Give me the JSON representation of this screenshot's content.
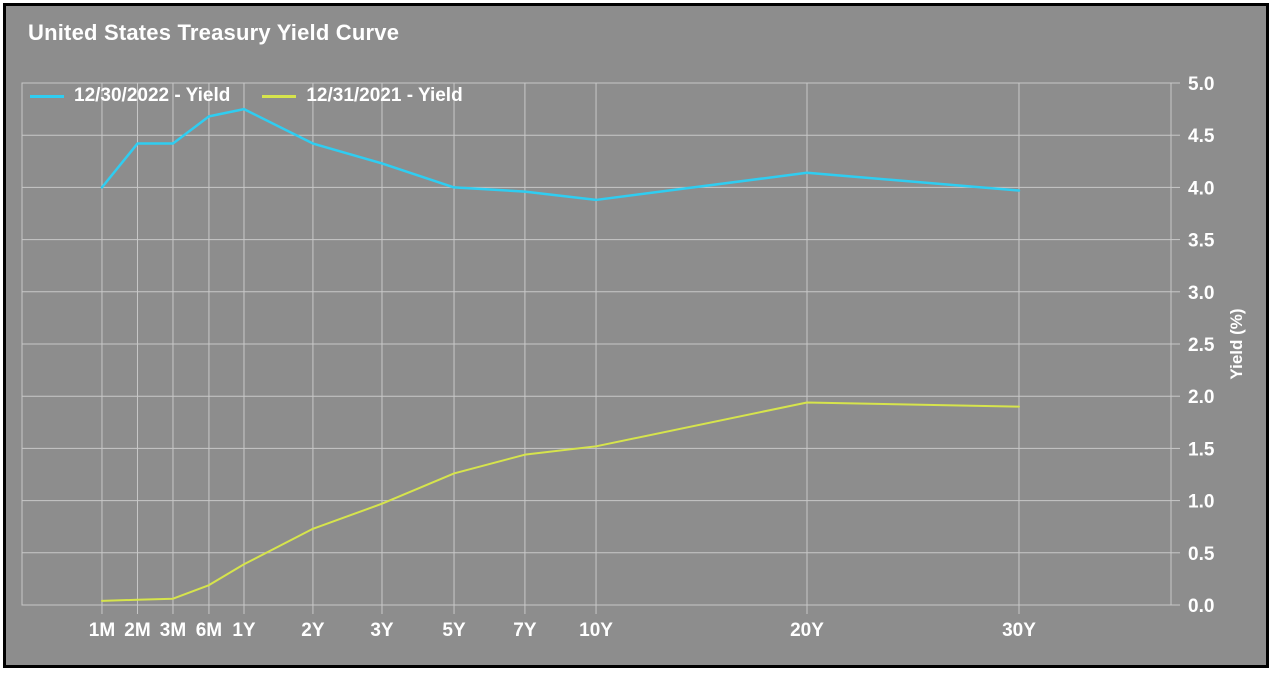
{
  "title": "United States Treasury Yield Curve",
  "chart_data": {
    "type": "line",
    "title": "United States Treasury Yield Curve",
    "categories": [
      "1M",
      "2M",
      "3M",
      "6M",
      "1Y",
      "2Y",
      "3Y",
      "5Y",
      "7Y",
      "10Y",
      "20Y",
      "30Y"
    ],
    "series": [
      {
        "name": "12/30/2022 - Yield",
        "color": "#2FCDF1",
        "values": [
          4.0,
          4.42,
          4.42,
          4.68,
          4.75,
          4.42,
          4.23,
          4.0,
          3.96,
          3.88,
          4.14,
          3.97
        ]
      },
      {
        "name": "12/31/2021 - Yield",
        "color": "#D6E44C",
        "values": [
          0.04,
          0.05,
          0.06,
          0.19,
          0.39,
          0.73,
          0.97,
          1.26,
          1.44,
          1.52,
          1.94,
          1.9
        ]
      }
    ],
    "xlabel": "",
    "ylabel": "Yield (%)",
    "ylim": [
      0.0,
      5.0
    ],
    "ytick_step": 0.5,
    "ytick_decimals": 1,
    "yaxis_side": "right",
    "grid": true,
    "legend_position": "top-left",
    "x_positions": [
      0.0696,
      0.1005,
      0.1314,
      0.1627,
      0.1932,
      0.2532,
      0.3133,
      0.376,
      0.4377,
      0.4996,
      0.6832,
      0.8677
    ]
  },
  "colors": {
    "background": "#8D8D8D",
    "frame_border": "#000000",
    "gridline": "#C8C8C8",
    "text": "#FFFFFF",
    "series_2022": "#2FCDF1",
    "series_2021": "#D6E44C"
  }
}
